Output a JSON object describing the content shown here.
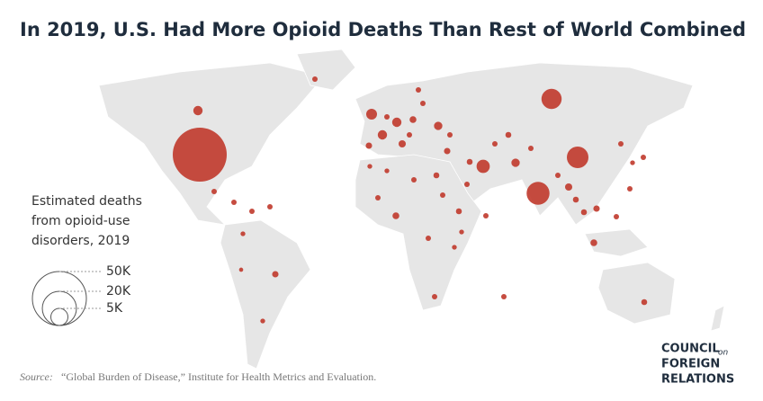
{
  "map": {
    "title": "In 2019, U.S. Had More Opioid Deaths Than Rest of World Combined",
    "legend": {
      "title_lines": [
        "Estimated deaths",
        "from opioid-use",
        "disorders, 2019"
      ],
      "sizes": [
        {
          "value": 50000,
          "label": "50K"
        },
        {
          "value": 20000,
          "label": "20K"
        },
        {
          "value": 5000,
          "label": "5K"
        }
      ]
    },
    "bubble_color": "#c0392b",
    "bubbles": [
      50000,
      1500,
      7000,
      8000,
      9000,
      3000,
      2000,
      1500,
      1500,
      1200,
      800,
      900,
      700,
      600,
      800,
      600,
      500,
      700,
      500,
      400,
      600,
      800,
      900,
      700,
      600,
      500,
      400,
      600,
      700,
      600,
      500,
      1200,
      600,
      400,
      300,
      500,
      500,
      400,
      400,
      400,
      400,
      500,
      500,
      500,
      500,
      500,
      500,
      500,
      500,
      500,
      500,
      500,
      500,
      500,
      500,
      500,
      500,
      500,
      500,
      500
    ],
    "source_label": "Source:",
    "source": "“Global Burden of Disease,” Institute for Health Metrics and Evaluation.",
    "logo": {
      "line1": "COUNCIL",
      "small": "on",
      "line2": "FOREIGN",
      "line3": "RELATIONS"
    }
  }
}
